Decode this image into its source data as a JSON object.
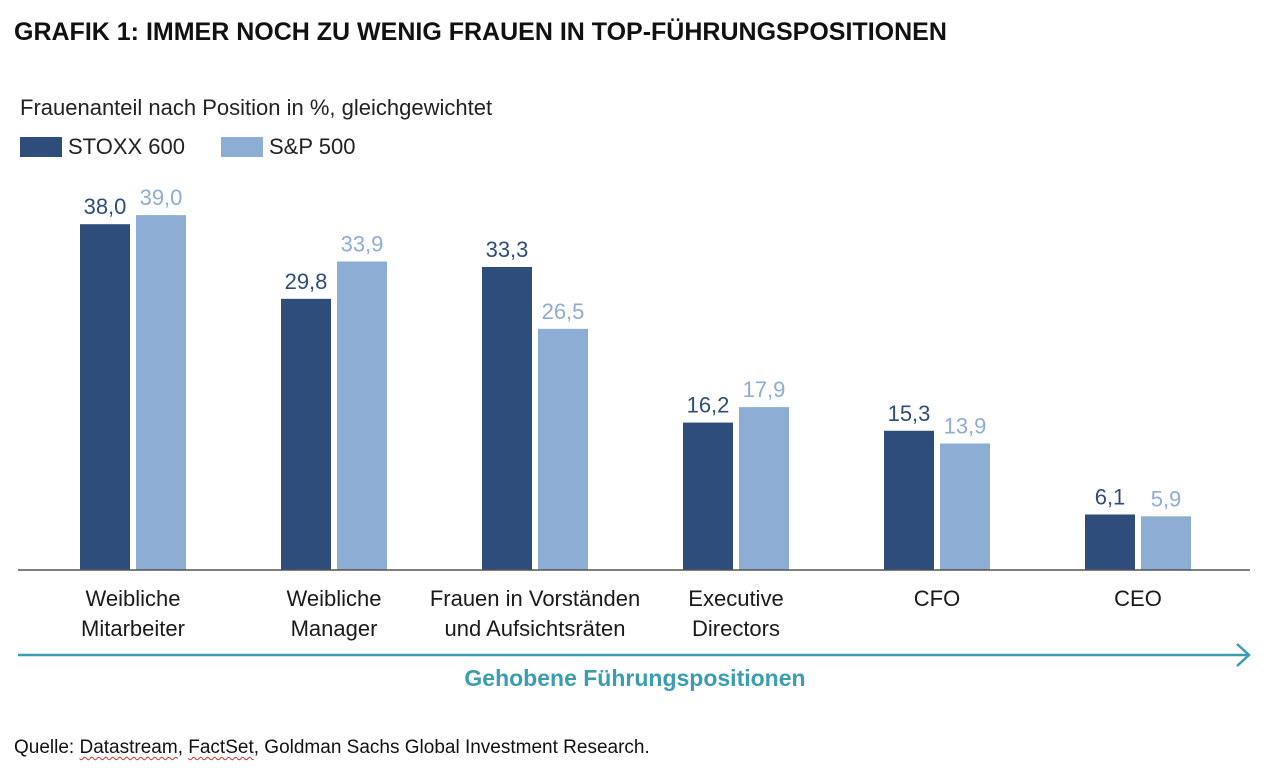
{
  "title": "GRAFIK 1: IMMER NOCH ZU WENIG FRAUEN IN TOP-FÜHRUNGSPOSITIONEN",
  "subtitle": "Frauenanteil nach Position in %, gleichgewichtet",
  "legend": [
    {
      "label": "STOXX 600",
      "color": "#2e4d7b"
    },
    {
      "label": "S&P 500",
      "color": "#8eadd5"
    }
  ],
  "arrow_label": "Gehobene Führungspositionen",
  "arrow_color": "#3a9db0",
  "source": {
    "prefix": "Quelle: ",
    "parts": [
      "Datastream",
      ", ",
      "FactSet",
      ", Goldman Sachs Global Investment Research."
    ]
  },
  "chart_data": {
    "type": "bar",
    "title": "",
    "xlabel": "",
    "ylabel": "",
    "ylim": [
      0,
      42
    ],
    "grid": false,
    "legend_position": "top-left",
    "categories": [
      [
        "Weibliche",
        "Mitarbeiter"
      ],
      [
        "Weibliche",
        "Manager"
      ],
      [
        "Frauen in Vorständen",
        "und Aufsichtsräten"
      ],
      [
        "Executive",
        "Directors"
      ],
      [
        "CFO"
      ],
      [
        "CEO"
      ]
    ],
    "series": [
      {
        "name": "STOXX 600",
        "color": "#2e4d7b",
        "label_color": "#2e4d7b",
        "values": [
          38.0,
          29.8,
          33.3,
          16.2,
          15.3,
          6.1
        ],
        "labels": [
          "38,0",
          "29,8",
          "33,3",
          "16,2",
          "15,3",
          "6,1"
        ]
      },
      {
        "name": "S&P 500",
        "color": "#8eadd5",
        "label_color": "#8eadd5",
        "values": [
          39.0,
          33.9,
          26.5,
          17.9,
          13.9,
          5.9
        ],
        "labels": [
          "39,0",
          "33,9",
          "26,5",
          "17,9",
          "13,9",
          "5,9"
        ]
      }
    ]
  }
}
